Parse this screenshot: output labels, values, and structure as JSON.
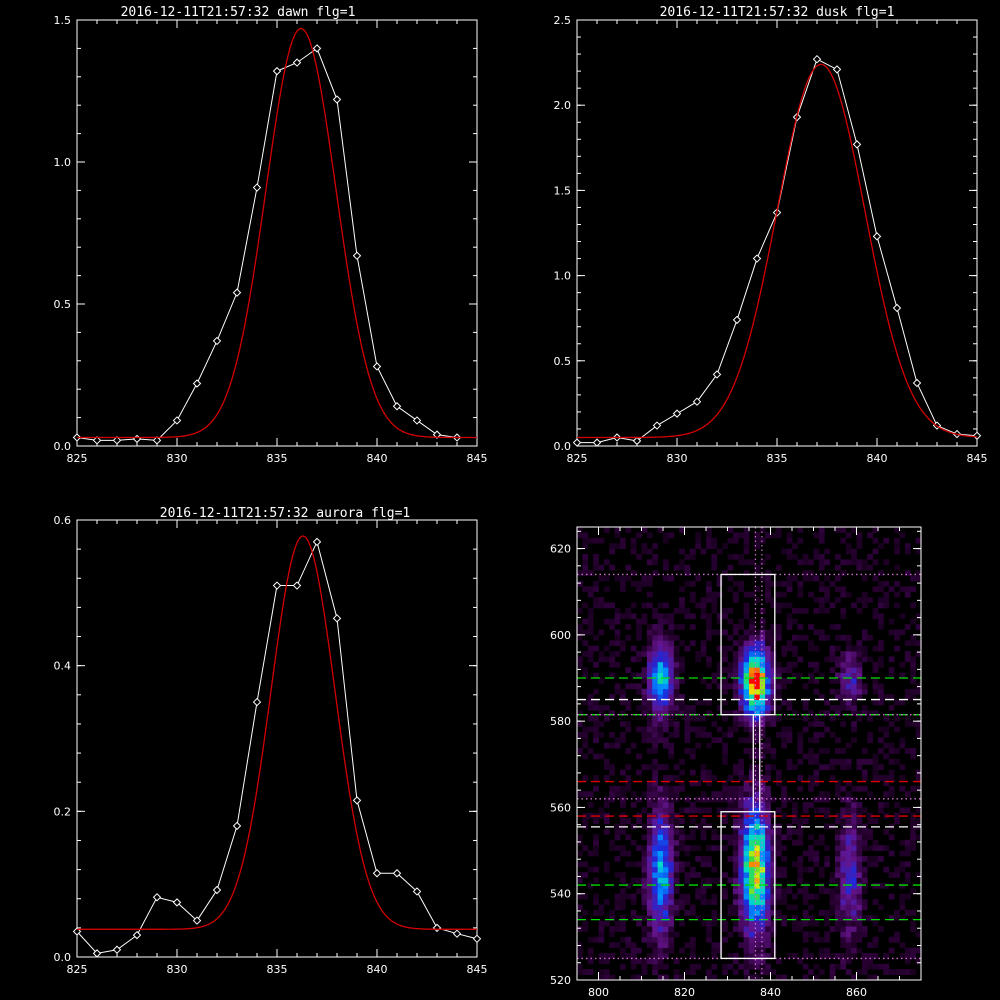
{
  "colors": {
    "background": "#000000",
    "axis": "#ffffff",
    "fit": "#d40000",
    "data": "#ffffff",
    "guide_green": "#00dd00",
    "guide_red": "#dd0000",
    "guide_purple": "#d070d0"
  },
  "chart_data": [
    {
      "id": "dawn",
      "type": "line",
      "title": "2016-12-11T21:57:32 dawn flg=1",
      "xlim": [
        825,
        845
      ],
      "ylim": [
        0,
        1.5
      ],
      "xticks": [
        825,
        830,
        835,
        840,
        845
      ],
      "xticklabels": [
        "825",
        "830",
        "835",
        "840",
        "845"
      ],
      "yticks": [
        0,
        0.5,
        1.0,
        1.5
      ],
      "yticklabels": [
        "0.0",
        "0.5",
        "1.0",
        "1.5"
      ],
      "series": [
        {
          "style": "data",
          "x": [
            825,
            826,
            827,
            828,
            829,
            830,
            831,
            832,
            833,
            834,
            835,
            836,
            837,
            838,
            839,
            840,
            841,
            842,
            843,
            844
          ],
          "y": [
            0.03,
            0.02,
            0.02,
            0.025,
            0.02,
            0.09,
            0.22,
            0.37,
            0.54,
            0.91,
            1.32,
            1.35,
            1.4,
            1.22,
            0.67,
            0.28,
            0.14,
            0.09,
            0.04,
            0.03
          ]
        },
        {
          "style": "fit",
          "gauss": {
            "amp": 1.44,
            "center": 836.2,
            "sigma": 1.75,
            "offset": 0.03
          }
        }
      ]
    },
    {
      "id": "dusk",
      "type": "line",
      "title": "2016-12-11T21:57:32 dusk flg=1",
      "xlim": [
        825,
        845
      ],
      "ylim": [
        0,
        2.5
      ],
      "xticks": [
        825,
        830,
        835,
        840,
        845
      ],
      "xticklabels": [
        "825",
        "830",
        "835",
        "840",
        "845"
      ],
      "yticks": [
        0,
        0.5,
        1.0,
        1.5,
        2.0,
        2.5
      ],
      "yticklabels": [
        "0.0",
        "0.5",
        "1.0",
        "1.5",
        "2.0",
        "2.5"
      ],
      "series": [
        {
          "style": "data",
          "x": [
            825,
            826,
            827,
            828,
            829,
            830,
            831,
            832,
            833,
            834,
            835,
            836,
            837,
            838,
            839,
            840,
            841,
            842,
            843,
            844,
            845
          ],
          "y": [
            0.02,
            0.02,
            0.05,
            0.03,
            0.12,
            0.19,
            0.26,
            0.42,
            0.74,
            1.1,
            1.37,
            1.93,
            2.27,
            2.21,
            1.77,
            1.23,
            0.81,
            0.37,
            0.12,
            0.07,
            0.06
          ]
        },
        {
          "style": "fit",
          "gauss": {
            "amp": 2.19,
            "center": 837.2,
            "sigma": 2.2,
            "offset": 0.05
          }
        }
      ]
    },
    {
      "id": "aurora",
      "type": "line",
      "title": "2016-12-11T21:57:32 aurora flg=1",
      "xlim": [
        825,
        845
      ],
      "ylim": [
        0,
        0.6
      ],
      "xticks": [
        825,
        830,
        835,
        840,
        845
      ],
      "xticklabels": [
        "825",
        "830",
        "835",
        "840",
        "845"
      ],
      "yticks": [
        0,
        0.2,
        0.4,
        0.6
      ],
      "yticklabels": [
        "0.0",
        "0.2",
        "0.4",
        "0.6"
      ],
      "series": [
        {
          "style": "data",
          "x": [
            825,
            826,
            827,
            828,
            829,
            830,
            831,
            832,
            833,
            834,
            835,
            836,
            837,
            838,
            839,
            840,
            841,
            842,
            843,
            844,
            845
          ],
          "y": [
            0.035,
            0.005,
            0.01,
            0.03,
            0.082,
            0.075,
            0.05,
            0.092,
            0.18,
            0.35,
            0.51,
            0.51,
            0.57,
            0.465,
            0.215,
            0.115,
            0.115,
            0.09,
            0.04,
            0.032,
            0.025
          ]
        },
        {
          "style": "fit",
          "gauss": {
            "amp": 0.54,
            "center": 836.3,
            "sigma": 1.6,
            "offset": 0.038
          }
        }
      ]
    },
    {
      "id": "image",
      "type": "heatmap",
      "title": "",
      "xlim": [
        795,
        875
      ],
      "ylim": [
        520,
        625
      ],
      "xticks": [
        800,
        820,
        840,
        860
      ],
      "xticklabels": [
        "800",
        "820",
        "840",
        "860"
      ],
      "yticks": [
        520,
        540,
        560,
        580,
        600,
        620
      ],
      "yticklabels": [
        "520",
        "540",
        "560",
        "580",
        "600",
        "620"
      ],
      "blobs": [
        {
          "x": 836.5,
          "y": 589,
          "sx": 2.2,
          "sy": 5.5,
          "amp": 1.0
        },
        {
          "x": 836.5,
          "y": 546,
          "sx": 2.3,
          "sy": 10,
          "amp": 0.82
        },
        {
          "x": 814.5,
          "y": 590,
          "sx": 2.0,
          "sy": 5.5,
          "amp": 0.55
        },
        {
          "x": 814.5,
          "y": 545,
          "sx": 2.0,
          "sy": 10,
          "amp": 0.5
        },
        {
          "x": 858.5,
          "y": 590,
          "sx": 1.8,
          "sy": 4,
          "amp": 0.28
        },
        {
          "x": 858.5,
          "y": 545,
          "sx": 1.8,
          "sy": 10,
          "amp": 0.3
        }
      ],
      "boxes": [
        {
          "x0": 828.5,
          "x1": 841,
          "y0": 581.5,
          "y1": 614
        },
        {
          "x0": 828.5,
          "x1": 841,
          "y0": 525,
          "y1": 559
        }
      ],
      "vline_solid": 836,
      "vlines_dotted": [
        836.5,
        838
      ],
      "hlines": [
        {
          "y": 614,
          "color": "purple",
          "dash": "dot"
        },
        {
          "y": 590,
          "color": "green",
          "dash": "dash"
        },
        {
          "y": 585,
          "color": "white",
          "dash": "dash"
        },
        {
          "y": 581.5,
          "color": "green",
          "dash": "dash"
        },
        {
          "y": 581.5,
          "color": "purple",
          "dash": "dot"
        },
        {
          "y": 566,
          "color": "red",
          "dash": "dash"
        },
        {
          "y": 562,
          "color": "purple",
          "dash": "dot"
        },
        {
          "y": 558,
          "color": "red",
          "dash": "dash"
        },
        {
          "y": 555.5,
          "color": "white",
          "dash": "dash"
        },
        {
          "y": 542,
          "color": "green",
          "dash": "dash"
        },
        {
          "y": 534,
          "color": "green",
          "dash": "dash"
        },
        {
          "y": 525,
          "color": "purple",
          "dash": "dot"
        }
      ]
    }
  ]
}
